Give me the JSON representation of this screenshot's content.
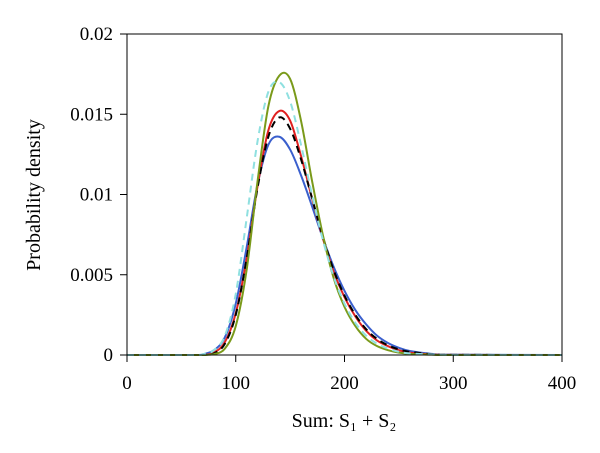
{
  "chart_data": {
    "type": "line",
    "xlabel": "Sum: S₁ + S₂",
    "ylabel": "Probability density",
    "xlim": [
      0,
      400
    ],
    "ylim": [
      0,
      0.02
    ],
    "x_ticks": [
      0,
      100,
      200,
      300,
      400
    ],
    "x_tick_labels": [
      "0",
      "100",
      "200",
      "300",
      "400"
    ],
    "y_ticks": [
      0,
      0.005,
      0.01,
      0.015,
      0.02
    ],
    "y_tick_labels": [
      "0",
      "0.005",
      "0.01",
      "0.015",
      "0.02"
    ],
    "grid": false,
    "legend": "none",
    "x": [
      0,
      60,
      70,
      80,
      90,
      100,
      110,
      120,
      130,
      140,
      150,
      160,
      170,
      180,
      190,
      200,
      210,
      220,
      230,
      240,
      250,
      260,
      280,
      300,
      400
    ],
    "series": [
      {
        "color": "#3a5fcd",
        "dash": "solid",
        "values": [
          0,
          0,
          5e-05,
          0.0003,
          0.0011,
          0.0032,
          0.0067,
          0.0106,
          0.0131,
          0.0136,
          0.0128,
          0.0112,
          0.0093,
          0.0073,
          0.0055,
          0.004,
          0.0028,
          0.0019,
          0.0012,
          0.00075,
          0.00045,
          0.00025,
          7e-05,
          2e-05,
          0
        ]
      },
      {
        "color": "#e02020",
        "dash": "solid",
        "values": [
          0,
          0,
          0,
          0.00015,
          0.0008,
          0.0026,
          0.006,
          0.0105,
          0.014,
          0.0152,
          0.0146,
          0.0124,
          0.0098,
          0.0073,
          0.0052,
          0.0036,
          0.0024,
          0.0015,
          0.0009,
          0.00055,
          0.0003,
          0.00015,
          4e-05,
          1e-05,
          0
        ]
      },
      {
        "color": "#000000",
        "dash": "dashed",
        "values": [
          0,
          0,
          0,
          0.0001,
          0.0007,
          0.0025,
          0.006,
          0.0104,
          0.0136,
          0.0148,
          0.0141,
          0.0122,
          0.0098,
          0.0074,
          0.0053,
          0.0037,
          0.0025,
          0.0016,
          0.001,
          0.0006,
          0.00035,
          0.0002,
          5e-05,
          1e-05,
          0
        ]
      },
      {
        "color": "#7a9a1a",
        "dash": "solid",
        "values": [
          0,
          0,
          0,
          5e-05,
          0.0004,
          0.0018,
          0.0053,
          0.0108,
          0.0155,
          0.0174,
          0.0172,
          0.0146,
          0.0109,
          0.0075,
          0.0048,
          0.003,
          0.0018,
          0.001,
          0.00055,
          0.0003,
          0.00015,
          7e-05,
          2e-05,
          0,
          0
        ]
      },
      {
        "color": "#8fe0e0",
        "dash": "dashed",
        "values": [
          0,
          0,
          5e-05,
          0.0003,
          0.0012,
          0.0038,
          0.0085,
          0.0133,
          0.0164,
          0.017,
          0.0158,
          0.0131,
          0.01,
          0.0072,
          0.0049,
          0.0032,
          0.002,
          0.0012,
          0.0007,
          0.0004,
          0.0002,
          0.0001,
          3e-05,
          1e-05,
          0
        ]
      }
    ]
  }
}
